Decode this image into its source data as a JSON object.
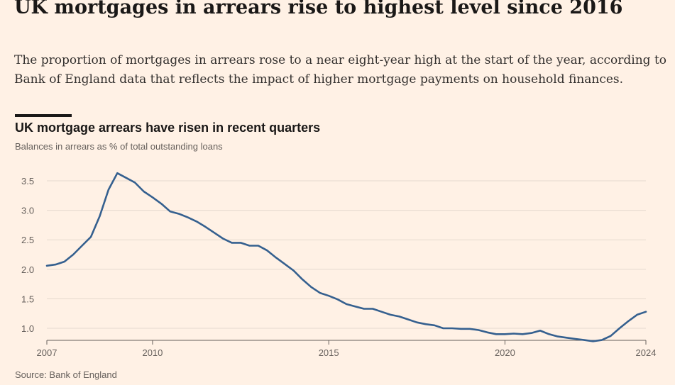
{
  "headline": "UK mortgages in arrears rise to highest level since 2016",
  "standfirst": "The proportion of mortgages in arrears rose to a near eight-year high at the start of the year, according to Bank of England data that reflects the impact of higher mortgage payments on household finances.",
  "source": "Source: Bank of England",
  "colors": {
    "background": "#fff1e5",
    "line": "#35608f",
    "grid": "#e6d9ce",
    "text": "#66605c"
  },
  "chart_data": {
    "type": "line",
    "title": "UK mortgage arrears have risen in recent quarters",
    "subtitle": "Balances in arrears as % of total outstanding loans",
    "xlabel": "",
    "ylabel": "",
    "xlim": [
      2007,
      2024
    ],
    "ylim": [
      0.8,
      3.7
    ],
    "x_ticks": [
      "2007",
      "2010",
      "2015",
      "2020",
      "2024"
    ],
    "y_ticks": [
      "1.0",
      "1.5",
      "2.0",
      "2.5",
      "3.0",
      "3.5"
    ],
    "grid": "horizontal",
    "legend": "none",
    "series": [
      {
        "x": [
          2007.0,
          2007.25,
          2007.5,
          2007.75,
          2008.0,
          2008.25,
          2008.5,
          2008.75,
          2009.0,
          2009.25,
          2009.5,
          2009.75,
          2010.0,
          2010.25,
          2010.5,
          2010.75,
          2011.0,
          2011.25,
          2011.5,
          2011.75,
          2012.0,
          2012.25,
          2012.5,
          2012.75,
          2013.0,
          2013.25,
          2013.5,
          2013.75,
          2014.0,
          2014.25,
          2014.5,
          2014.75,
          2015.0,
          2015.25,
          2015.5,
          2015.75,
          2016.0,
          2016.25,
          2016.5,
          2016.75,
          2017.0,
          2017.25,
          2017.5,
          2017.75,
          2018.0,
          2018.25,
          2018.5,
          2018.75,
          2019.0,
          2019.25,
          2019.5,
          2019.75,
          2020.0,
          2020.25,
          2020.5,
          2020.75,
          2021.0,
          2021.25,
          2021.5,
          2021.75,
          2022.0,
          2022.25,
          2022.5,
          2022.75,
          2023.0,
          2023.25,
          2023.5,
          2023.75,
          2024.0
        ],
        "values": [
          2.06,
          2.08,
          2.13,
          2.25,
          2.4,
          2.55,
          2.9,
          3.35,
          3.63,
          3.55,
          3.47,
          3.32,
          3.22,
          3.11,
          2.98,
          2.94,
          2.88,
          2.81,
          2.72,
          2.62,
          2.52,
          2.45,
          2.45,
          2.4,
          2.4,
          2.32,
          2.2,
          2.09,
          1.98,
          1.83,
          1.7,
          1.6,
          1.55,
          1.49,
          1.41,
          1.37,
          1.33,
          1.33,
          1.28,
          1.23,
          1.2,
          1.15,
          1.1,
          1.07,
          1.05,
          1.0,
          1.0,
          0.99,
          0.99,
          0.97,
          0.93,
          0.9,
          0.9,
          0.91,
          0.9,
          0.92,
          0.96,
          0.9,
          0.86,
          0.84,
          0.82,
          0.8,
          0.78,
          0.8,
          0.87,
          1.0,
          1.12,
          1.23,
          1.28
        ]
      }
    ]
  }
}
